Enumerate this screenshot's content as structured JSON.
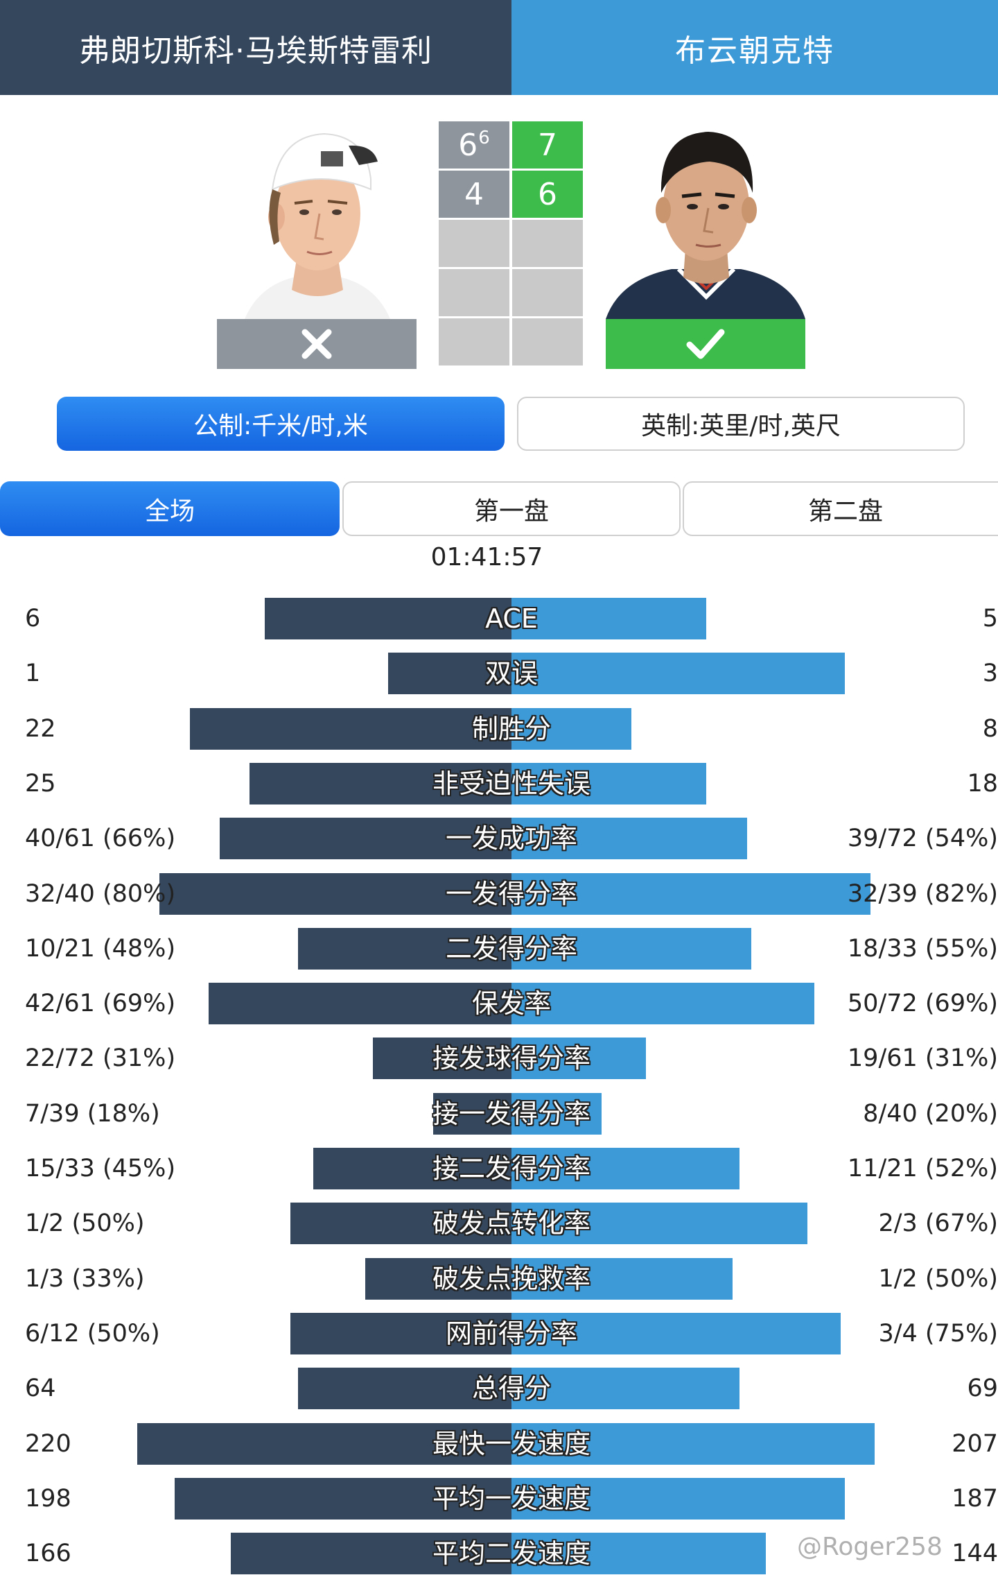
{
  "header": {
    "player1_name": "弗朗切斯科·马埃斯特雷利",
    "player2_name": "布云朝克特"
  },
  "players": {
    "p1": {
      "result": "loss",
      "result_icon": "cross-icon"
    },
    "p2": {
      "result": "win",
      "result_icon": "check-icon"
    }
  },
  "scoreboard": {
    "sets": [
      {
        "p1": "6",
        "p1_tiebreak": "6",
        "p2": "7"
      },
      {
        "p1": "4",
        "p1_tiebreak": "",
        "p2": "6"
      }
    ],
    "empty_rows": 3
  },
  "units": {
    "metric_label": "公制:千米/时,米",
    "imperial_label": "英制:英里/时,英尺",
    "selected": "metric"
  },
  "tabs": {
    "all": "全场",
    "set1": "第一盘",
    "set2": "第二盘",
    "selected": "all"
  },
  "match_duration": "01:41:57",
  "colors": {
    "player1": "#34475c",
    "player2": "#3d9ad7",
    "winner_cell": "#3dbc4b",
    "loser_cell": "#8e959d",
    "selected_tab": "#1a73e8"
  },
  "stats": [
    {
      "label": "ACE",
      "p1": "6",
      "p2": "5",
      "p1_bar": 0.66,
      "p2_bar": 0.52
    },
    {
      "label": "双误",
      "p1": "1",
      "p2": "3",
      "p1_bar": 0.33,
      "p2_bar": 0.89
    },
    {
      "label": "制胜分",
      "p1": "22",
      "p2": "8",
      "p1_bar": 0.86,
      "p2_bar": 0.32
    },
    {
      "label": "非受迫性失误",
      "p1": "25",
      "p2": "18",
      "p1_bar": 0.7,
      "p2_bar": 0.52
    },
    {
      "label": "一发成功率",
      "p1": "40/61 (66%)",
      "p2": "39/72 (54%)",
      "p1_bar": 0.78,
      "p2_bar": 0.63
    },
    {
      "label": "一发得分率",
      "p1": "32/40 (80%)",
      "p2": "32/39 (82%)",
      "p1_bar": 0.94,
      "p2_bar": 0.96
    },
    {
      "label": "二发得分率",
      "p1": "10/21 (48%)",
      "p2": "18/33 (55%)",
      "p1_bar": 0.57,
      "p2_bar": 0.64
    },
    {
      "label": "保发率",
      "p1": "42/61 (69%)",
      "p2": "50/72 (69%)",
      "p1_bar": 0.81,
      "p2_bar": 0.81
    },
    {
      "label": "接发球得分率",
      "p1": "22/72 (31%)",
      "p2": "19/61 (31%)",
      "p1_bar": 0.37,
      "p2_bar": 0.36
    },
    {
      "label": "接一发得分率",
      "p1": "7/39 (18%)",
      "p2": "8/40 (20%)",
      "p1_bar": 0.21,
      "p2_bar": 0.24
    },
    {
      "label": "接二发得分率",
      "p1": "15/33 (45%)",
      "p2": "11/21 (52%)",
      "p1_bar": 0.53,
      "p2_bar": 0.61
    },
    {
      "label": "破发点转化率",
      "p1": "1/2 (50%)",
      "p2": "2/3 (67%)",
      "p1_bar": 0.59,
      "p2_bar": 0.79
    },
    {
      "label": "破发点挽救率",
      "p1": "1/3 (33%)",
      "p2": "1/2 (50%)",
      "p1_bar": 0.39,
      "p2_bar": 0.59
    },
    {
      "label": "网前得分率",
      "p1": "6/12 (50%)",
      "p2": "3/4 (75%)",
      "p1_bar": 0.59,
      "p2_bar": 0.88
    },
    {
      "label": "总得分",
      "p1": "64",
      "p2": "69",
      "p1_bar": 0.57,
      "p2_bar": 0.61
    },
    {
      "label": "最快一发速度",
      "p1": "220",
      "p2": "207",
      "p1_bar": 1.0,
      "p2_bar": 0.97
    },
    {
      "label": "平均一发速度",
      "p1": "198",
      "p2": "187",
      "p1_bar": 0.9,
      "p2_bar": 0.89
    },
    {
      "label": "平均二发速度",
      "p1": "166",
      "p2": "144",
      "p1_bar": 0.75,
      "p2_bar": 0.68
    }
  ],
  "watermark": "@Roger258"
}
